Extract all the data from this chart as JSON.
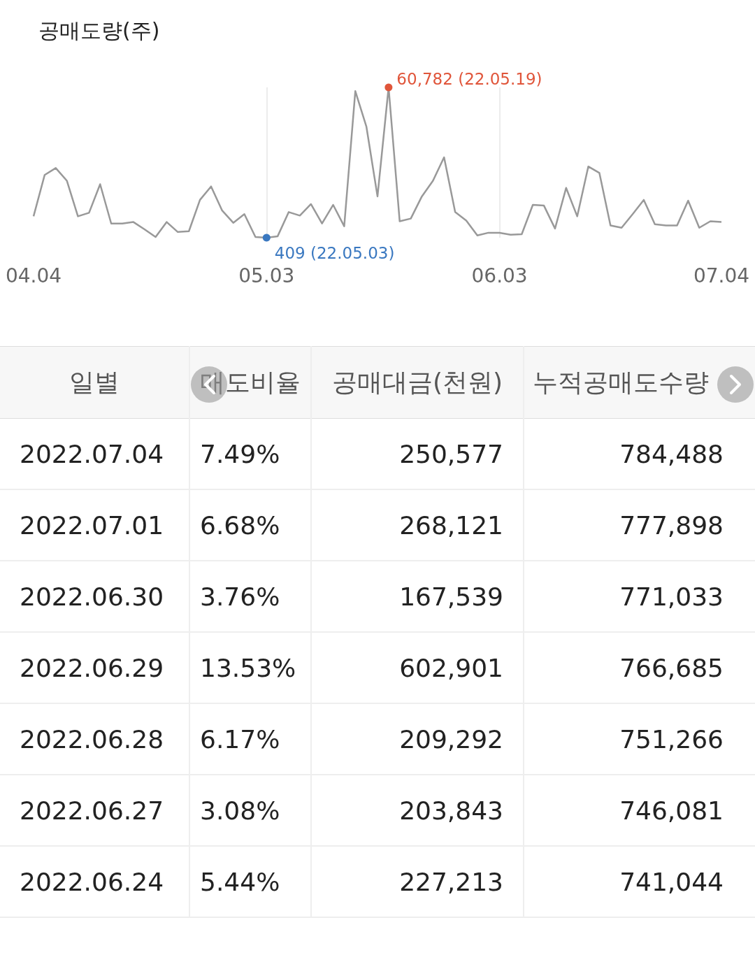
{
  "chart_data": [
    {
      "type": "line",
      "ylabel": "공매도량(주)",
      "grid": "x",
      "categories": [
        "04.04",
        null,
        null,
        null,
        null,
        null,
        null,
        null,
        null,
        null,
        null,
        null,
        null,
        null,
        null,
        null,
        null,
        null,
        null,
        null,
        null,
        "05.03",
        null,
        null,
        null,
        null,
        null,
        null,
        null,
        null,
        null,
        null,
        null,
        null,
        null,
        null,
        null,
        null,
        null,
        null,
        null,
        null,
        "06.03",
        null,
        null,
        null,
        null,
        null,
        null,
        null,
        null,
        null,
        null,
        null,
        null,
        null,
        null,
        null,
        null,
        null,
        null,
        null,
        "07.04"
      ],
      "series": [
        {
          "color": "#999999",
          "colors": [
            "#999999",
            "#999999",
            "#999999",
            "#999999",
            "#999999",
            "#999999",
            "#999999",
            "#999999",
            "#999999",
            "#999999",
            "#999999",
            "#999999",
            "#999999",
            "#999999",
            "#999999",
            "#999999",
            "#999999",
            "#999999",
            "#999999",
            "#999999",
            "#999999",
            "#3a78c0",
            "#999999",
            "#999999",
            "#999999",
            "#999999",
            "#999999",
            "#999999",
            "#999999",
            "#999999",
            "#999999",
            "#999999",
            "#e0553a",
            "#999999",
            "#999999",
            "#999999",
            "#999999",
            "#999999",
            "#999999",
            "#999999",
            "#999999",
            "#999999",
            "#999999",
            "#999999",
            "#999999",
            "#999999",
            "#999999",
            "#999999",
            "#999999",
            "#999999",
            "#999999",
            "#999999",
            "#999999",
            "#999999",
            "#999999",
            "#999999",
            "#999999",
            "#999999",
            "#999999",
            "#999999",
            "#999999",
            "#999999",
            "#999999"
          ],
          "values": [
            9000,
            25600,
            28400,
            23300,
            9000,
            10400,
            21900,
            6100,
            6100,
            6700,
            3800,
            700,
            6700,
            2700,
            3000,
            15600,
            21000,
            11300,
            6400,
            9900,
            700,
            409,
            1000,
            10700,
            9300,
            13900,
            6100,
            13600,
            5000,
            59300,
            45000,
            17000,
            60782,
            7000,
            8100,
            17000,
            23300,
            32700,
            10700,
            7300,
            1300,
            2400,
            2400,
            1600,
            1800,
            13600,
            13300,
            4100,
            20400,
            9000,
            29000,
            26400,
            5300,
            4400,
            9900,
            15600,
            5800,
            5300,
            5300,
            15300,
            4400,
            7000,
            6700
          ],
          "value_labels": [
            null,
            null,
            null,
            null,
            null,
            null,
            null,
            null,
            null,
            null,
            null,
            null,
            null,
            null,
            null,
            null,
            null,
            null,
            null,
            null,
            null,
            "409 (22.05.03)",
            null,
            null,
            null,
            null,
            null,
            null,
            null,
            null,
            null,
            null,
            "60,782 (22.05.19)",
            null,
            null,
            null,
            null,
            null,
            null,
            null,
            null,
            null,
            null,
            null,
            null,
            null,
            null,
            null,
            null,
            null,
            null,
            null,
            null,
            null,
            null,
            null,
            null,
            null,
            null,
            null,
            null,
            null,
            null
          ]
        }
      ]
    },
    {
      "type": "other",
      "categories": [
        "일별",
        "매도비율",
        "공매대금(천원)",
        "누적공매도수량"
      ],
      "cell_labels": [
        [
          "2022.07.04",
          "7.49%",
          "250,577",
          "784,488"
        ],
        [
          "2022.07.01",
          "6.68%",
          "268,121",
          "777,898"
        ],
        [
          "2022.06.30",
          "3.76%",
          "167,539",
          "771,033"
        ],
        [
          "2022.06.29",
          "13.53%",
          "602,901",
          "766,685"
        ],
        [
          "2022.06.28",
          "6.17%",
          "209,292",
          "751,266"
        ],
        [
          "2022.06.27",
          "3.08%",
          "203,843",
          "746,081"
        ],
        [
          "2022.06.24",
          "5.44%",
          "227,213",
          "741,044"
        ]
      ]
    }
  ]
}
